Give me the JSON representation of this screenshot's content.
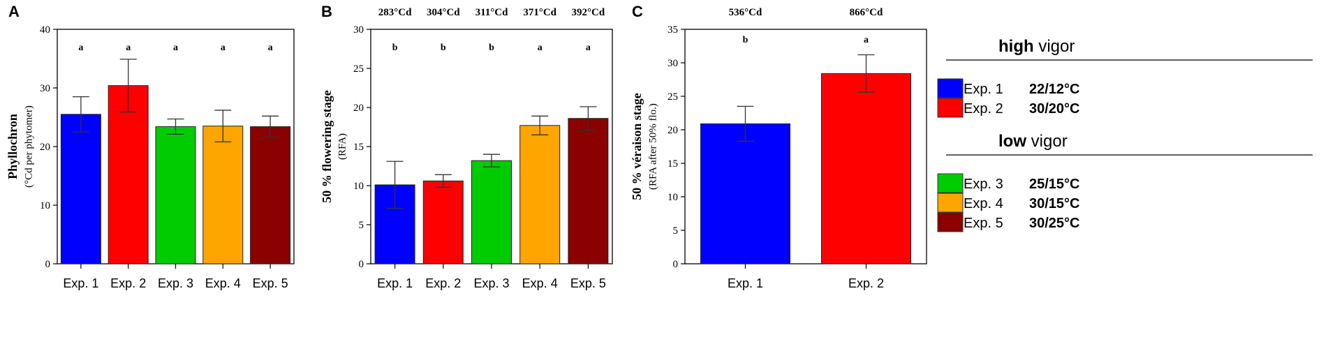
{
  "chart_data": [
    {
      "panel": "A",
      "type": "bar",
      "ylabel": "Phyllochron",
      "ylabel_sub": "(°Cd per phytomer)",
      "categories": [
        "Exp. 1",
        "Exp. 2",
        "Exp. 3",
        "Exp. 4",
        "Exp. 5"
      ],
      "values": [
        25.5,
        30.4,
        23.4,
        23.5,
        23.4
      ],
      "errors": [
        3.0,
        4.5,
        1.3,
        2.7,
        1.8
      ],
      "significance": [
        "a",
        "a",
        "a",
        "a",
        "a"
      ],
      "ylim": [
        0,
        40
      ],
      "yticks": [
        0,
        10,
        20,
        30,
        40
      ]
    },
    {
      "panel": "B",
      "type": "bar",
      "ylabel": "50 % flowering stage",
      "ylabel_sub": "(RFA)",
      "categories": [
        "Exp. 1",
        "Exp. 2",
        "Exp. 3",
        "Exp. 4",
        "Exp. 5"
      ],
      "values": [
        10.1,
        10.6,
        13.2,
        17.7,
        18.6
      ],
      "errors": [
        3.0,
        0.8,
        0.8,
        1.2,
        1.5
      ],
      "significance": [
        "b",
        "b",
        "b",
        "a",
        "a"
      ],
      "top_labels": [
        "283°Cd",
        "304°Cd",
        "311°Cd",
        "371°Cd",
        "392°Cd"
      ],
      "ylim": [
        0,
        30
      ],
      "yticks": [
        0,
        5,
        10,
        15,
        20,
        25,
        30
      ]
    },
    {
      "panel": "C",
      "type": "bar",
      "ylabel": "50 % véraison stage",
      "ylabel_sub": "(RFA after 50% flo.)",
      "categories": [
        "Exp. 1",
        "Exp. 2"
      ],
      "values": [
        20.9,
        28.4
      ],
      "errors": [
        2.6,
        2.8
      ],
      "significance": [
        "b",
        "a"
      ],
      "top_labels": [
        "536°Cd",
        "866°Cd"
      ],
      "ylim": [
        0,
        35
      ],
      "yticks": [
        0,
        5,
        10,
        15,
        20,
        25,
        30,
        35
      ]
    }
  ],
  "colors": {
    "Exp. 1": "#0000ff",
    "Exp. 2": "#ff0000",
    "Exp. 3": "#00cc00",
    "Exp. 4": "#ffa500",
    "Exp. 5": "#8b0000",
    "axis": "#000000"
  },
  "legend": {
    "groups": [
      {
        "heading_bold": "high",
        "heading_rest": " vigor",
        "items": [
          {
            "exp": "Exp. 1",
            "label": "Exp. 1",
            "temp": "22/12°C"
          },
          {
            "exp": "Exp. 2",
            "label": "Exp. 2",
            "temp": "30/20°C"
          }
        ]
      },
      {
        "heading_bold": "low",
        "heading_rest": " vigor",
        "items": [
          {
            "exp": "Exp. 3",
            "label": "Exp. 3",
            "temp": "25/15°C"
          },
          {
            "exp": "Exp. 4",
            "label": "Exp. 4",
            "temp": "30/15°C"
          },
          {
            "exp": "Exp. 5",
            "label": "Exp. 5",
            "temp": "30/25°C"
          }
        ]
      }
    ]
  }
}
